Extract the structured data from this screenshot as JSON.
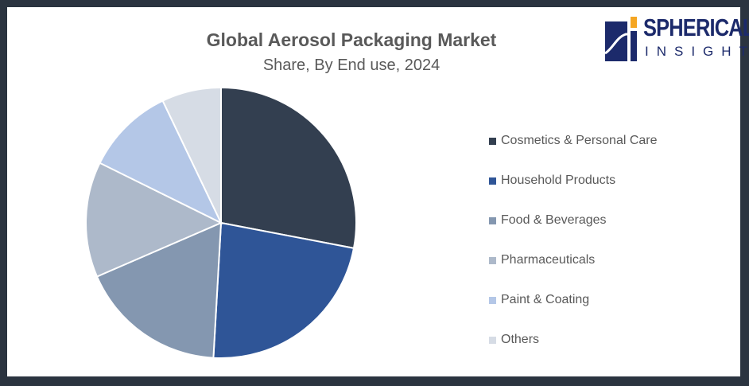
{
  "chart_data": {
    "type": "pie",
    "title": "Global Aerosol Packaging Market",
    "subtitle": "Share, By End use, 2024",
    "legend_position": "right",
    "categories": [
      "Cosmetics & Personal Care",
      "Household Products",
      "Food & Beverages",
      "Pharmaceuticals",
      "Paint & Coating",
      "Others"
    ],
    "values": [
      28,
      22.9,
      17.6,
      13.8,
      10.6,
      7.1
    ],
    "colors": [
      "#333f50",
      "#2f5597",
      "#8497b0",
      "#adb9ca",
      "#b4c7e7",
      "#d6dce5"
    ]
  },
  "logo": {
    "line1": "SPHERICAL",
    "line2": "INSIGHTS"
  }
}
